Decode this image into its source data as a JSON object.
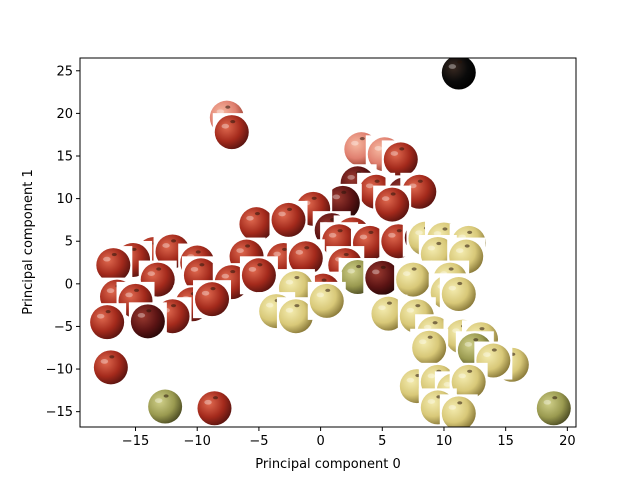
{
  "chart_data": {
    "type": "scatter",
    "title": "",
    "xlabel": "Principal component 0",
    "ylabel": "Principal component 1",
    "xlim": [
      -19.5,
      20.7
    ],
    "ylim": [
      -16.8,
      26.5
    ],
    "xticks": [
      -15,
      -10,
      -5,
      0,
      5,
      10,
      15,
      20
    ],
    "yticks": [
      -15,
      -10,
      -5,
      0,
      5,
      10,
      15,
      20,
      25
    ],
    "xtick_labels": [
      "−15",
      "−10",
      "−5",
      "0",
      "5",
      "10",
      "15",
      "20"
    ],
    "ytick_labels": [
      "−15",
      "−10",
      "−5",
      "0",
      "5",
      "10",
      "15",
      "20",
      "25"
    ],
    "grid": false,
    "legend": "none",
    "marker": "apple photo thumbnails",
    "colors": {
      "red_apple": "#a42a1c",
      "dark_red_apple": "#5c1414",
      "yellow_apple": "#d8c878",
      "green_apple": "#9a9a50",
      "dark_apple": "#0a0a0a",
      "pink_apple": "#e08070"
    },
    "points": [
      {
        "x": 11.2,
        "y": 24.8,
        "kind": "dark_apple"
      },
      {
        "x": -7.6,
        "y": 19.5,
        "kind": "pink_apple"
      },
      {
        "x": -7.2,
        "y": 17.8,
        "kind": "red_apple"
      },
      {
        "x": 3.3,
        "y": 15.8,
        "kind": "pink_apple"
      },
      {
        "x": 5.2,
        "y": 15.2,
        "kind": "pink_apple"
      },
      {
        "x": 6.5,
        "y": 14.6,
        "kind": "red_apple"
      },
      {
        "x": 3.0,
        "y": 11.8,
        "kind": "dark_red_apple"
      },
      {
        "x": 4.5,
        "y": 10.8,
        "kind": "red_apple"
      },
      {
        "x": 6.8,
        "y": 10.5,
        "kind": "dark_red_apple"
      },
      {
        "x": 8.0,
        "y": 10.8,
        "kind": "red_apple"
      },
      {
        "x": 1.8,
        "y": 9.5,
        "kind": "dark_red_apple"
      },
      {
        "x": -0.6,
        "y": 8.8,
        "kind": "red_apple"
      },
      {
        "x": 5.8,
        "y": 9.3,
        "kind": "red_apple"
      },
      {
        "x": -5.2,
        "y": 7.0,
        "kind": "red_apple"
      },
      {
        "x": -2.6,
        "y": 7.5,
        "kind": "red_apple"
      },
      {
        "x": 0.9,
        "y": 6.3,
        "kind": "dark_red_apple"
      },
      {
        "x": 2.6,
        "y": 5.8,
        "kind": "red_apple"
      },
      {
        "x": 1.5,
        "y": 5.0,
        "kind": "red_apple"
      },
      {
        "x": 4.0,
        "y": 4.8,
        "kind": "red_apple"
      },
      {
        "x": 6.3,
        "y": 5.0,
        "kind": "red_apple"
      },
      {
        "x": 8.2,
        "y": 5.4,
        "kind": "dark_red_apple"
      },
      {
        "x": 8.5,
        "y": 5.3,
        "kind": "yellow_apple"
      },
      {
        "x": 10.0,
        "y": 5.2,
        "kind": "yellow_apple"
      },
      {
        "x": 12.0,
        "y": 4.8,
        "kind": "yellow_apple"
      },
      {
        "x": 9.5,
        "y": 3.5,
        "kind": "yellow_apple"
      },
      {
        "x": 11.8,
        "y": 3.2,
        "kind": "yellow_apple"
      },
      {
        "x": -6.0,
        "y": 3.2,
        "kind": "red_apple"
      },
      {
        "x": -3.0,
        "y": 2.8,
        "kind": "red_apple"
      },
      {
        "x": -1.2,
        "y": 3.0,
        "kind": "red_apple"
      },
      {
        "x": 2.0,
        "y": 2.2,
        "kind": "red_apple"
      },
      {
        "x": -13.5,
        "y": 3.5,
        "kind": "red_apple"
      },
      {
        "x": -12.0,
        "y": 3.8,
        "kind": "red_apple"
      },
      {
        "x": -15.2,
        "y": 2.8,
        "kind": "red_apple"
      },
      {
        "x": -16.8,
        "y": 2.2,
        "kind": "red_apple"
      },
      {
        "x": -10.0,
        "y": 2.5,
        "kind": "red_apple"
      },
      {
        "x": -13.2,
        "y": 0.5,
        "kind": "red_apple"
      },
      {
        "x": -9.7,
        "y": 1.0,
        "kind": "red_apple"
      },
      {
        "x": -7.2,
        "y": 0.2,
        "kind": "red_apple"
      },
      {
        "x": -5.0,
        "y": 1.0,
        "kind": "red_apple"
      },
      {
        "x": 3.0,
        "y": 0.8,
        "kind": "green_apple"
      },
      {
        "x": 5.0,
        "y": 0.7,
        "kind": "dark_red_apple"
      },
      {
        "x": 7.5,
        "y": 0.5,
        "kind": "yellow_apple"
      },
      {
        "x": 10.5,
        "y": 0.5,
        "kind": "yellow_apple"
      },
      {
        "x": 0.2,
        "y": -0.8,
        "kind": "red_apple"
      },
      {
        "x": -2.0,
        "y": -0.5,
        "kind": "yellow_apple"
      },
      {
        "x": -16.5,
        "y": -1.5,
        "kind": "red_apple"
      },
      {
        "x": -15.0,
        "y": -2.0,
        "kind": "red_apple"
      },
      {
        "x": -10.4,
        "y": -2.4,
        "kind": "red_apple"
      },
      {
        "x": -8.8,
        "y": -1.8,
        "kind": "red_apple"
      },
      {
        "x": 10.3,
        "y": -1.0,
        "kind": "yellow_apple"
      },
      {
        "x": 11.2,
        "y": -1.2,
        "kind": "yellow_apple"
      },
      {
        "x": -17.3,
        "y": -4.5,
        "kind": "red_apple"
      },
      {
        "x": -12.0,
        "y": -3.8,
        "kind": "red_apple"
      },
      {
        "x": -14.0,
        "y": -4.4,
        "kind": "dark_red_apple"
      },
      {
        "x": -3.6,
        "y": -3.2,
        "kind": "yellow_apple"
      },
      {
        "x": -2.0,
        "y": -3.8,
        "kind": "yellow_apple"
      },
      {
        "x": 0.5,
        "y": -2.0,
        "kind": "yellow_apple"
      },
      {
        "x": 5.5,
        "y": -3.5,
        "kind": "yellow_apple"
      },
      {
        "x": 7.8,
        "y": -3.8,
        "kind": "yellow_apple"
      },
      {
        "x": 9.2,
        "y": -5.8,
        "kind": "yellow_apple"
      },
      {
        "x": 11.5,
        "y": -6.2,
        "kind": "yellow_apple"
      },
      {
        "x": 13.0,
        "y": -6.5,
        "kind": "yellow_apple"
      },
      {
        "x": 8.8,
        "y": -7.5,
        "kind": "yellow_apple"
      },
      {
        "x": 12.5,
        "y": -7.8,
        "kind": "green_apple"
      },
      {
        "x": 15.5,
        "y": -9.5,
        "kind": "yellow_apple"
      },
      {
        "x": 14.0,
        "y": -9.0,
        "kind": "yellow_apple"
      },
      {
        "x": -17.0,
        "y": -9.8,
        "kind": "red_apple"
      },
      {
        "x": 7.8,
        "y": -12.0,
        "kind": "yellow_apple"
      },
      {
        "x": 9.5,
        "y": -11.5,
        "kind": "yellow_apple"
      },
      {
        "x": 10.8,
        "y": -12.5,
        "kind": "yellow_apple"
      },
      {
        "x": 12.0,
        "y": -11.5,
        "kind": "yellow_apple"
      },
      {
        "x": 9.5,
        "y": -14.5,
        "kind": "yellow_apple"
      },
      {
        "x": 11.2,
        "y": -15.2,
        "kind": "yellow_apple"
      },
      {
        "x": -12.6,
        "y": -14.4,
        "kind": "green_apple"
      },
      {
        "x": -8.6,
        "y": -14.6,
        "kind": "red_apple"
      },
      {
        "x": 18.9,
        "y": -14.6,
        "kind": "green_apple"
      }
    ]
  }
}
